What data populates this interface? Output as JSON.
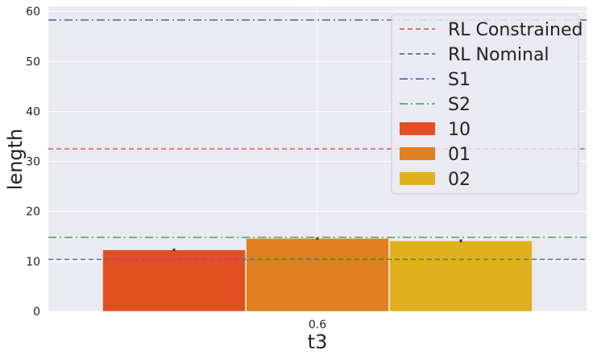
{
  "chart_data": {
    "type": "bar",
    "xlabel": "t3",
    "ylabel": "length",
    "ylim": [
      0,
      61
    ],
    "yticks": [
      0,
      10,
      20,
      30,
      40,
      50,
      60
    ],
    "grid": true,
    "legend_position": "top-right",
    "categories": [
      "0.6"
    ],
    "series": [
      {
        "name": "10",
        "values": [
          12.3
        ],
        "error": [
          0.25
        ],
        "color": "#e05020"
      },
      {
        "name": "01",
        "values": [
          14.6
        ],
        "error": [
          0.25
        ],
        "color": "#e08020"
      },
      {
        "name": "02",
        "values": [
          14.1
        ],
        "error": [
          0.3
        ],
        "color": "#e0b020"
      }
    ],
    "reference_lines": [
      {
        "name": "RL Constrained",
        "y": 32.5,
        "color": "#d65f5f",
        "style": "dashed"
      },
      {
        "name": "RL Nominal",
        "y": 10.4,
        "color": "#4c72b0",
        "style": "dashed"
      },
      {
        "name": "S1",
        "y": 58.3,
        "color": "#4c72b0",
        "style": "dashdot"
      },
      {
        "name": "S2",
        "y": 14.8,
        "color": "#55a868",
        "style": "dashdot"
      }
    ],
    "colors": {
      "background": "#eaeaf2",
      "grid": "#ffffff",
      "error_bar": "#3a3a3a"
    }
  }
}
